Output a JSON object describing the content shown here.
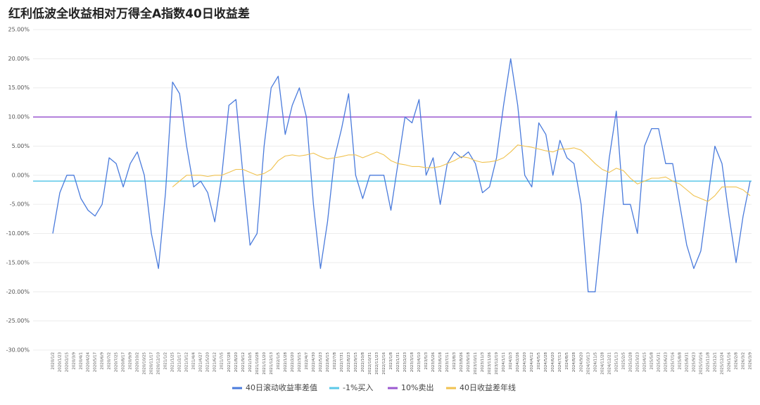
{
  "chart_data": {
    "type": "line",
    "title": "红利低波全收益相对万得全A指数40日收益差",
    "categories": [
      "2020/1/2",
      "2020/1/23",
      "2020/2/15",
      "2020/3/9",
      "2020/4/1",
      "2020/4/24",
      "2020/5/17",
      "2020/6/9",
      "2020/7/2",
      "2020/7/25",
      "2020/8/17",
      "2020/9/9",
      "2020/10/2",
      "2020/10/25",
      "2020/11/17",
      "2020/12/10",
      "2021/1/2",
      "2021/1/25",
      "2021/2/17",
      "2021/3/12",
      "2021/4/4",
      "2021/4/27",
      "2021/5/20",
      "2021/6/12",
      "2021/7/5",
      "2021/7/28",
      "2021/8/20",
      "2021/9/12",
      "2021/10/5",
      "2021/10/28",
      "2021/11/20",
      "2021/12/13",
      "2022/1/5",
      "2022/1/28",
      "2022/2/20",
      "2022/3/15",
      "2022/4/7",
      "2022/4/30",
      "2022/5/23",
      "2022/6/15",
      "2022/7/8",
      "2022/7/31",
      "2022/8/23",
      "2022/9/15",
      "2022/10/8",
      "2022/10/31",
      "2022/11/23",
      "2022/12/16",
      "2023/1/8",
      "2023/1/31",
      "2023/2/23",
      "2023/3/18",
      "2023/4/10",
      "2023/5/3",
      "2023/5/26",
      "2023/6/18",
      "2023/7/11",
      "2023/8/3",
      "2023/8/26",
      "2023/9/18",
      "2023/10/11",
      "2023/11/3",
      "2023/11/26",
      "2023/12/19",
      "2024/1/11",
      "2024/2/3",
      "2024/2/26",
      "2024/3/20",
      "2024/4/12",
      "2024/5/5",
      "2024/5/28",
      "2024/6/20",
      "2024/7/13",
      "2024/8/5",
      "2024/8/28",
      "2024/9/20",
      "2024/10/13",
      "2024/11/5",
      "2024/11/28",
      "2024/12/21",
      "2025/1/13",
      "2025/2/5",
      "2025/2/28",
      "2025/3/23",
      "2025/4/15",
      "2025/5/8",
      "2025/5/31",
      "2025/6/23",
      "2025/7/16",
      "2025/8/8",
      "2025/8/31",
      "2025/9/23",
      "2025/10/16",
      "2025/11/8",
      "2025/12/1",
      "2025/12/24",
      "2026/1/16",
      "2026/2/8",
      "2026/3/2",
      "2026/3/9"
    ],
    "series": [
      {
        "name": "40日滚动收益率差值",
        "color": "#4a7bdc",
        "values": [
          -10,
          -3,
          0,
          0,
          -4,
          -6,
          -7,
          -5,
          3,
          2,
          -2,
          2,
          4,
          0,
          -10,
          -16,
          -3,
          16,
          14,
          5,
          -2,
          -1,
          -3,
          -8,
          0,
          12,
          13,
          0,
          -12,
          -10,
          5,
          15,
          17,
          7,
          12,
          15,
          10,
          -5,
          -16,
          -8,
          3,
          8,
          14,
          0,
          -4,
          0,
          0,
          0,
          -6,
          2,
          10,
          9,
          13,
          0,
          3,
          -5,
          2,
          4,
          3,
          4,
          2,
          -3,
          -2,
          3,
          12,
          20,
          12,
          0,
          -2,
          9,
          7,
          0,
          6,
          3,
          2,
          -5,
          -20,
          -20,
          -8,
          3,
          11,
          -5,
          -5,
          -10,
          5,
          8,
          8,
          2,
          2,
          -5,
          -12,
          -16,
          -13,
          -4,
          5,
          2,
          -7,
          -15,
          -7,
          -1
        ]
      },
      {
        "name": "40日收益差年线",
        "color": "#f0c24f",
        "values": [
          null,
          null,
          null,
          null,
          null,
          null,
          null,
          null,
          null,
          null,
          null,
          null,
          null,
          null,
          null,
          null,
          null,
          -2,
          -1,
          0,
          0,
          0,
          -0.2,
          0,
          0,
          0.5,
          1,
          1,
          0.5,
          0,
          0.3,
          1,
          2.5,
          3.3,
          3.5,
          3.3,
          3.5,
          3.8,
          3.2,
          2.8,
          3,
          3.2,
          3.5,
          3.5,
          3,
          3.5,
          4,
          3.5,
          2.5,
          2,
          1.8,
          1.5,
          1.5,
          1.3,
          1.3,
          1.5,
          2,
          2.5,
          3.2,
          3,
          2.5,
          2.2,
          2.3,
          2.5,
          3,
          4,
          5.2,
          5,
          4.8,
          4.5,
          4.2,
          4,
          4.5,
          4.5,
          4.7,
          4.3,
          3.2,
          2,
          1,
          0.5,
          1.2,
          0.8,
          -0.5,
          -1.5,
          -1,
          -0.5,
          -0.5,
          -0.3,
          -1,
          -1.5,
          -2.5,
          -3.5,
          -4,
          -4.5,
          -3.5,
          -2,
          -2,
          -2,
          -2.5,
          -3.5
        ]
      }
    ],
    "hlines": [
      {
        "name": "-1%买入",
        "color": "#5bc8e8",
        "value": -1
      },
      {
        "name": "10%卖出",
        "color": "#9b59d0",
        "value": 10
      }
    ],
    "legend_order": [
      "series.0",
      "hlines.0",
      "hlines.1",
      "series.1"
    ],
    "ylim": [
      -30,
      25
    ],
    "yticks": [
      {
        "value": -30,
        "label": "-30.00%"
      },
      {
        "value": -25,
        "label": "-25.00%"
      },
      {
        "value": -20,
        "label": "-20.00%"
      },
      {
        "value": -15,
        "label": "-15.00%"
      },
      {
        "value": -10,
        "label": "-10.00%"
      },
      {
        "value": -5,
        "label": "-5.00%"
      },
      {
        "value": 0,
        "label": "0.00%"
      },
      {
        "value": 5,
        "label": "5.00%"
      },
      {
        "value": 10,
        "label": "10.00%"
      },
      {
        "value": 15,
        "label": "15.00%"
      },
      {
        "value": 20,
        "label": "20.00%"
      },
      {
        "value": 25,
        "label": "25.00%"
      }
    ],
    "grid": true
  }
}
